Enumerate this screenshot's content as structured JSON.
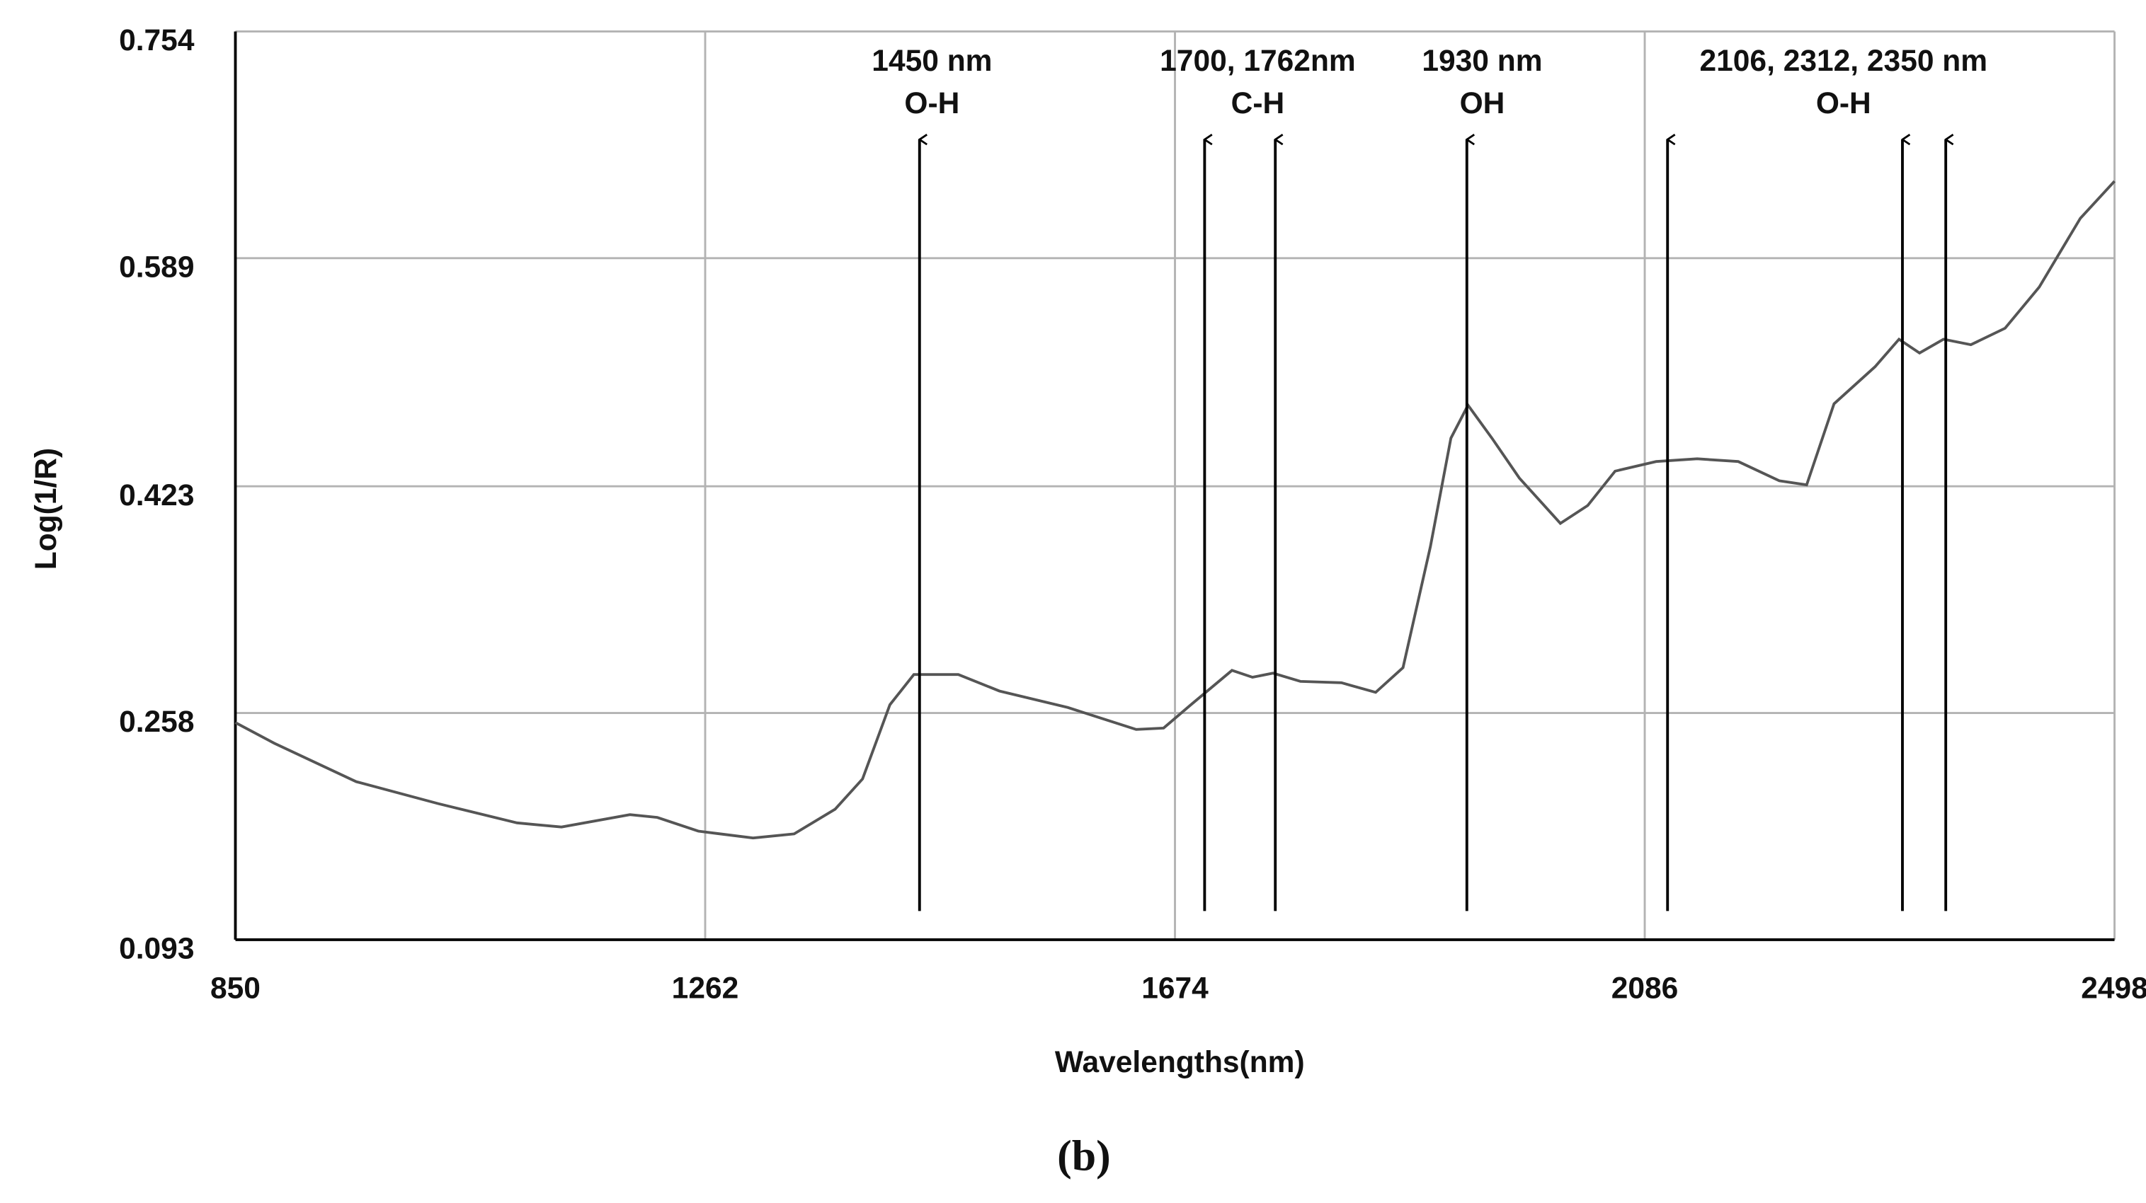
{
  "chart_data": {
    "type": "line",
    "caption": "(b)",
    "xlabel": "Wavelengths(nm)",
    "ylabel": "Log(1/R)",
    "x": [
      850,
      884,
      956,
      1028,
      1097,
      1136,
      1196,
      1220,
      1256,
      1304,
      1340,
      1376,
      1400,
      1424,
      1445,
      1484,
      1520,
      1580,
      1640,
      1664,
      1688,
      1724,
      1742,
      1760,
      1784,
      1820,
      1850,
      1874,
      1898,
      1916,
      1931,
      1952,
      1976,
      2012,
      2036,
      2060,
      2096,
      2132,
      2168,
      2204,
      2228,
      2252,
      2288,
      2309,
      2327,
      2348,
      2372,
      2402,
      2432,
      2468,
      2498
    ],
    "values": [
      0.251,
      0.236,
      0.208,
      0.192,
      0.178,
      0.175,
      0.184,
      0.182,
      0.172,
      0.167,
      0.17,
      0.188,
      0.21,
      0.264,
      0.286,
      0.286,
      0.274,
      0.262,
      0.246,
      0.247,
      0.264,
      0.289,
      0.284,
      0.287,
      0.281,
      0.28,
      0.273,
      0.291,
      0.379,
      0.458,
      0.482,
      0.458,
      0.429,
      0.396,
      0.409,
      0.434,
      0.441,
      0.443,
      0.441,
      0.427,
      0.424,
      0.483,
      0.51,
      0.53,
      0.52,
      0.53,
      0.526,
      0.538,
      0.568,
      0.618,
      0.645
    ],
    "color": "#555555",
    "xlim": [
      850,
      2498
    ],
    "xticks": [
      850,
      1262,
      1674,
      2086,
      2498
    ],
    "ylim": [
      0.093,
      0.754
    ],
    "yticks": [
      0.093,
      0.258,
      0.423,
      0.589,
      0.754
    ],
    "grid": true,
    "annotations": [
      {
        "lines": [
          "1450 nm",
          "O-H"
        ],
        "arrows": [
          1450
        ]
      },
      {
        "lines": [
          "1700, 1762nm",
          "C-H"
        ],
        "arrows": [
          1700,
          1762
        ]
      },
      {
        "lines": [
          "1930 nm",
          "OH"
        ],
        "arrows": [
          1930
        ]
      },
      {
        "lines": [
          "2106, 2312, 2350 nm",
          "O-H"
        ],
        "arrows": [
          2106,
          2312,
          2350
        ]
      }
    ]
  }
}
